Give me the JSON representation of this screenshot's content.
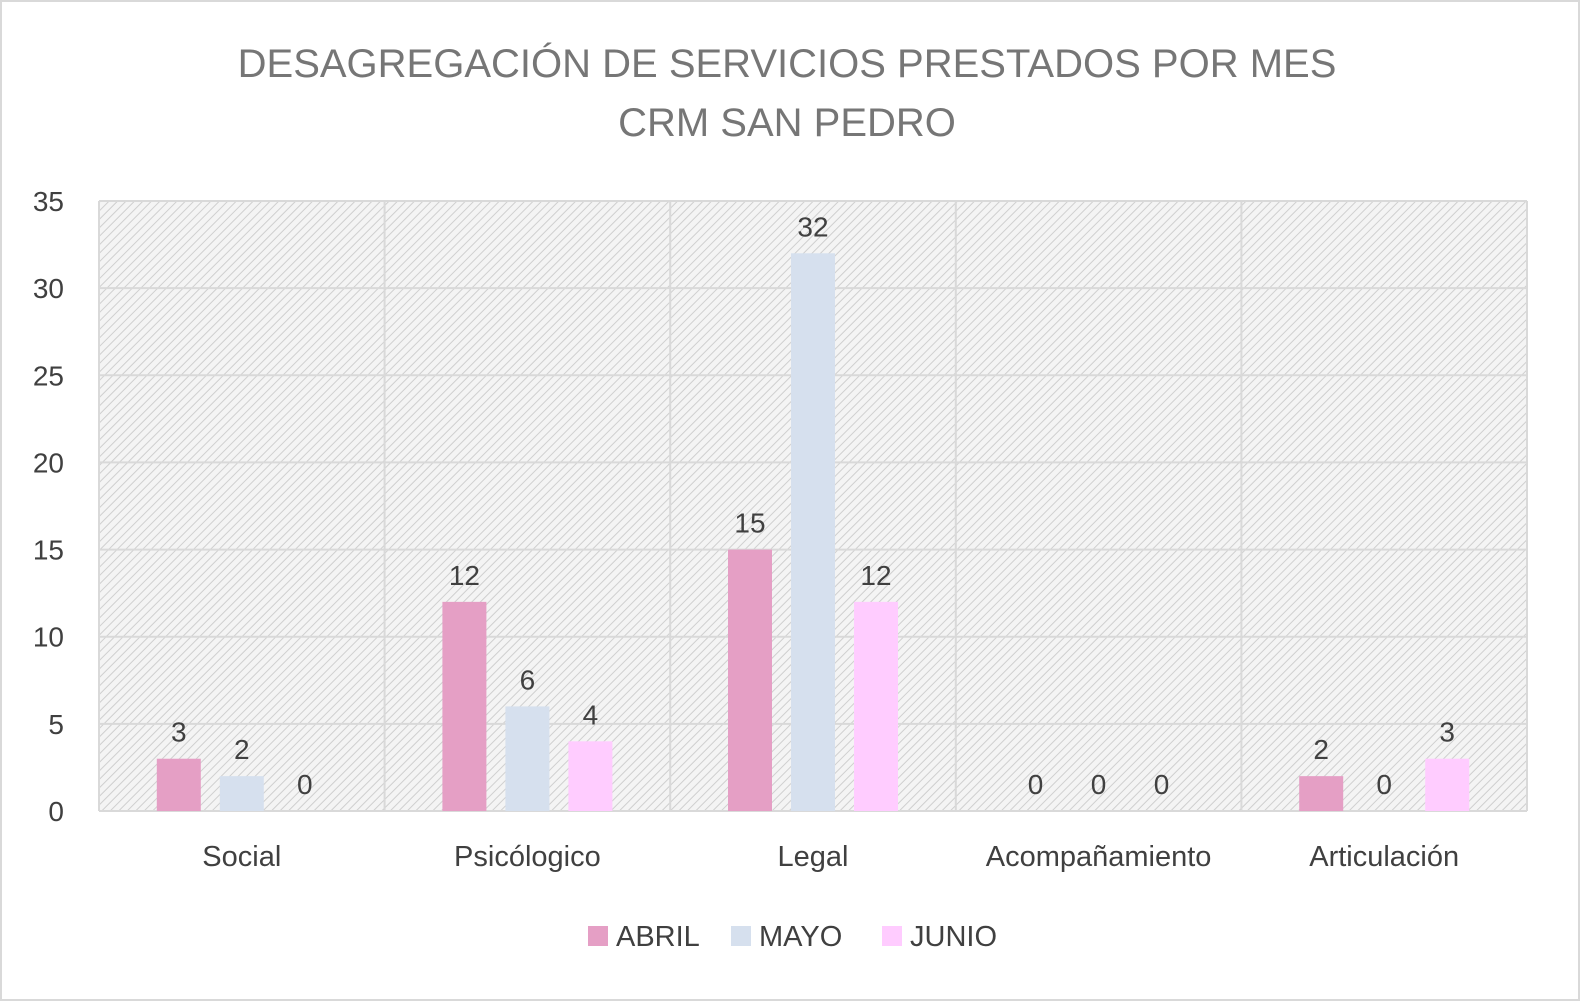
{
  "chart_data": {
    "type": "bar",
    "title": [
      "DESAGREGACIÓN DE SERVICIOS PRESTADOS POR MES",
      "CRM SAN PEDRO"
    ],
    "categories": [
      "Social",
      "Psicólogico",
      "Legal",
      "Acompañamiento",
      "Articulación"
    ],
    "series": [
      {
        "name": "ABRIL",
        "color": "#e59fc5",
        "values": [
          3,
          12,
          15,
          0,
          2
        ]
      },
      {
        "name": "MAYO",
        "color": "#d6e0ee",
        "values": [
          2,
          6,
          32,
          0,
          0
        ]
      },
      {
        "name": "JUNIO",
        "color": "#ffccff",
        "values": [
          0,
          4,
          12,
          0,
          3
        ]
      }
    ],
    "ylim": [
      0,
      35
    ],
    "yticks": [
      0,
      5,
      10,
      15,
      20,
      25,
      30,
      35
    ],
    "grid": true,
    "data_labels": true,
    "legend_position": "bottom",
    "plot_background": "hatched gray"
  }
}
